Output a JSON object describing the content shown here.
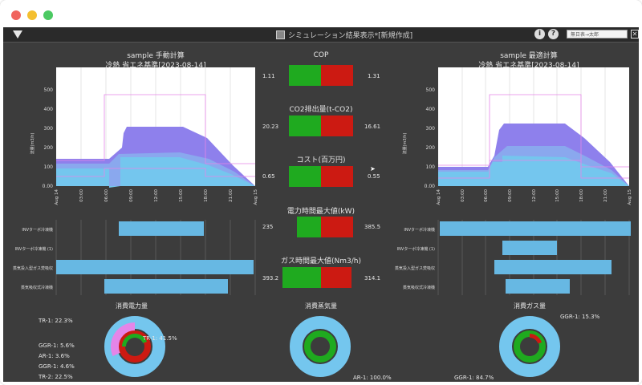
{
  "window": {
    "title": "シミュレーション結果表示*[新規作成]",
    "select_value": "無日表→太郎",
    "info_glyph": "i",
    "help_glyph": "?"
  },
  "left_chart": {
    "title": "sample 手動計算",
    "subtitle": "冷熱 省エネ基準[2023-08-14]",
    "ylabel": "流量(m3/h)",
    "yticks": [
      "0.00",
      "100",
      "200",
      "300",
      "400",
      "500"
    ],
    "xticks": [
      "Aug 14",
      "03:00",
      "06:00",
      "09:00",
      "12:00",
      "15:00",
      "18:00",
      "21:00",
      "Aug 15"
    ]
  },
  "right_chart": {
    "title": "sample 最適計算",
    "subtitle": "冷熱 省エネ基準[2023-08-14]",
    "ylabel": "流量(m3/h)",
    "yticks": [
      "0.00",
      "100",
      "200",
      "300",
      "400",
      "500"
    ],
    "xticks": [
      "Aug 14",
      "03:00",
      "06:00",
      "09:00",
      "12:00",
      "15:00",
      "18:00",
      "21:00",
      "Aug 15"
    ]
  },
  "equipment_labels": [
    "INVターボ冷凍機",
    "INVターボ冷凍機 (1)",
    "蒸気投入型ガス焚吸収",
    "蒸気吸収式冷凍機"
  ],
  "comparisons": [
    {
      "title": "COP",
      "left": "1.11",
      "right": "1.31"
    },
    {
      "title": "CO2排出量(t-CO2)",
      "left": "20.23",
      "right": "16.61"
    },
    {
      "title": "コスト(百万円)",
      "left": "0.65",
      "right": "0.55"
    },
    {
      "title": "電力時間最大値(kW)",
      "left": "235",
      "right": "385.5"
    },
    {
      "title": "ガス時間最大値(Nm3/h)",
      "left": "393.2",
      "right": "314.1"
    }
  ],
  "donuts": {
    "power": {
      "title": "消費電力量",
      "labels": [
        "TR-1: 22.3%",
        "TR-1: 41.5%",
        "GGR-1: 5.6%",
        "AR-1: 3.6%",
        "GGR-1: 4.6%",
        "TR-2: 22.5%"
      ]
    },
    "steam": {
      "title": "消費蒸気量",
      "labels": [
        "AR-1: 100.0%"
      ]
    },
    "gas": {
      "title": "消費ガス量",
      "labels": [
        "GGR-1: 15.3%",
        "GGR-1: 84.7%"
      ]
    }
  },
  "colors": {
    "app_bg": "#3c3c3c",
    "plot_bg": "#ffffff",
    "green": "#1faa1f",
    "red": "#cc1a12",
    "bar_blue": "#67b8e3",
    "purple": "#8e80ec",
    "light_blue": "#74c6ee",
    "pink": "#e585e8"
  }
}
